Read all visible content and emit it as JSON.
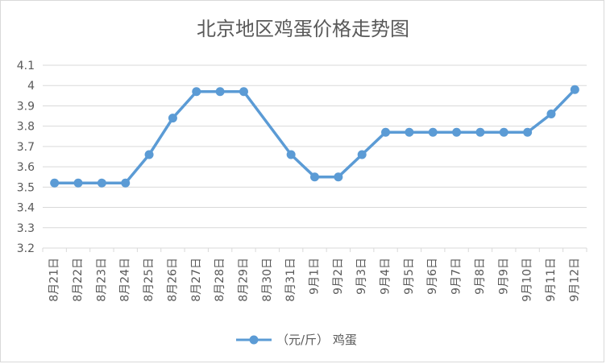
{
  "chart_data": {
    "type": "line",
    "title": "北京地区鸡蛋价格走势图",
    "categories": [
      "8月21日",
      "8月22日",
      "8月23日",
      "8月24日",
      "8月25日",
      "8月26日",
      "8月27日",
      "8月28日",
      "8月29日",
      "8月30日",
      "8月31日",
      "9月1日",
      "9月2日",
      "9月3日",
      "9月4日",
      "9月5日",
      "9月6日",
      "9月7日",
      "9月8日",
      "9月9日",
      "9月10日",
      "9月11日",
      "9月12日"
    ],
    "series": [
      {
        "name": "（元/斤） 鸡蛋",
        "color": "#5b9bd5",
        "values": [
          3.52,
          3.52,
          3.52,
          3.52,
          3.66,
          3.84,
          3.97,
          3.97,
          3.97,
          null,
          3.66,
          3.55,
          3.55,
          3.66,
          3.77,
          3.77,
          3.77,
          3.77,
          3.77,
          3.77,
          3.77,
          3.86,
          3.98
        ]
      }
    ],
    "ylim": [
      3.2,
      4.1
    ],
    "yticks": [
      "3.2",
      "3.3",
      "3.4",
      "3.5",
      "3.6",
      "3.7",
      "3.8",
      "3.9",
      "4",
      "4.1"
    ],
    "grid": true,
    "legend_position": "bottom",
    "colors": {
      "series": "#5b9bd5",
      "grid": "#d9d9d9",
      "text": "#595959"
    }
  }
}
